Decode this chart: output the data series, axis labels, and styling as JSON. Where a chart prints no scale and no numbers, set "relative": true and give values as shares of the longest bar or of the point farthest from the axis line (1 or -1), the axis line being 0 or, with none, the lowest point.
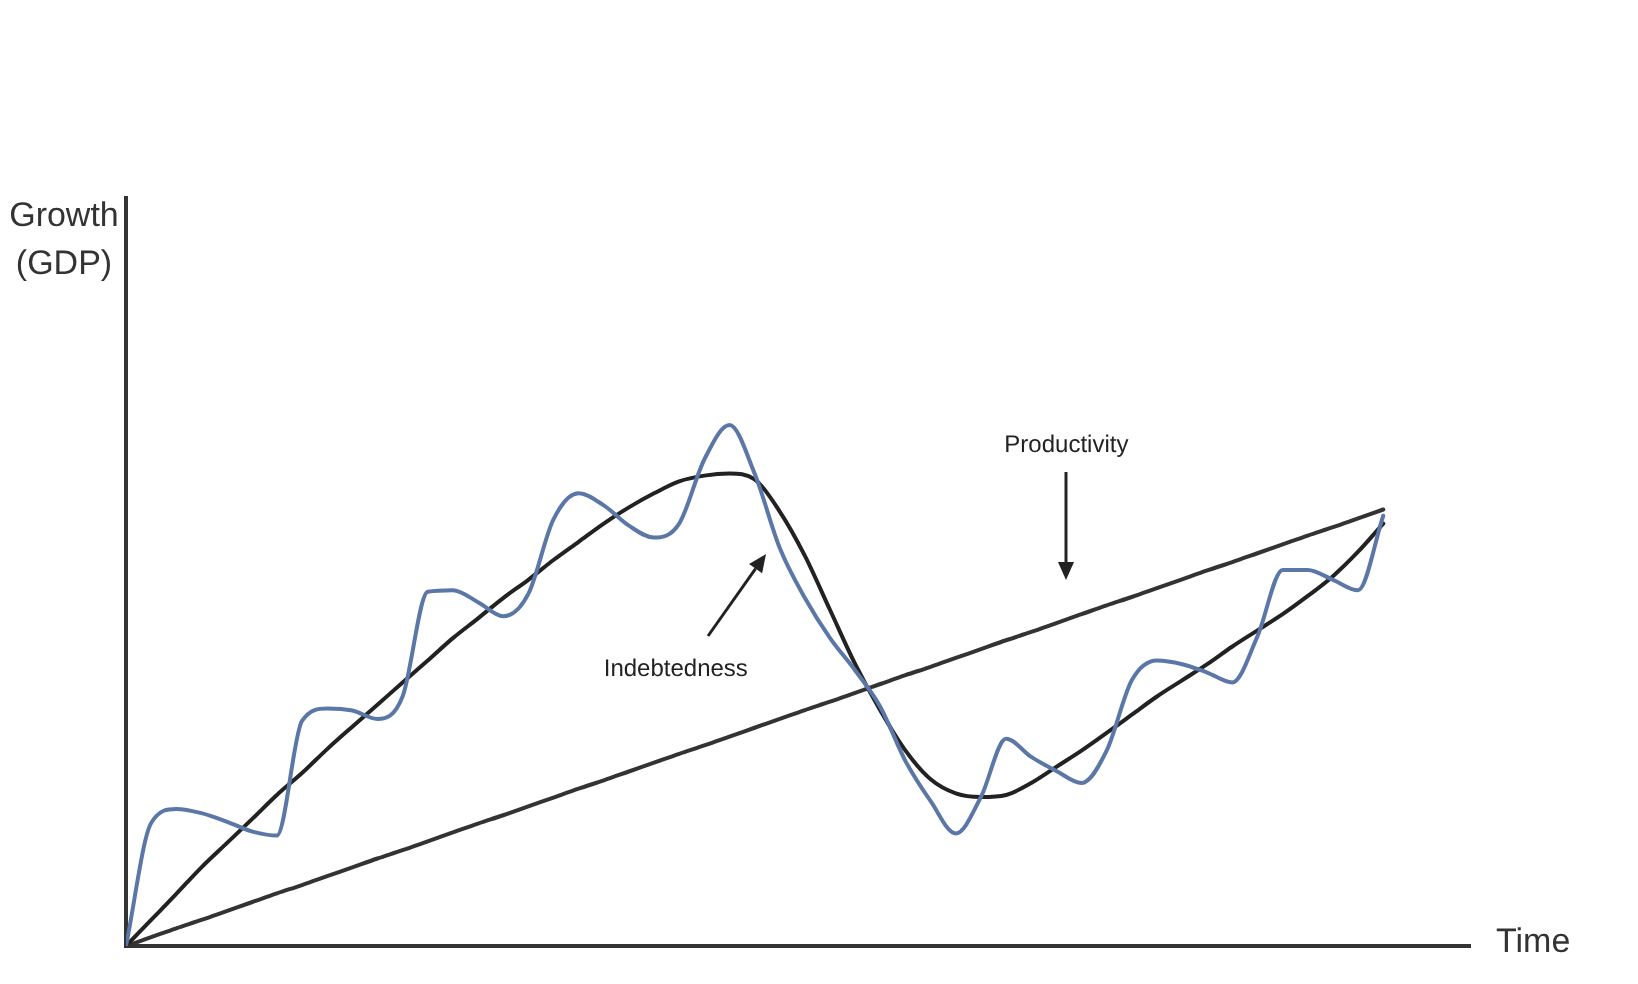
{
  "chart_data": {
    "type": "line",
    "xlabel": "Time",
    "ylabel": "Growth (GDP)",
    "relative": true,
    "marker": "none",
    "annotations": [
      "Indebtedness",
      "Productivity"
    ],
    "categories": [
      null,
      null,
      null,
      null,
      null,
      null,
      null,
      null,
      null,
      null,
      null,
      null,
      null,
      null,
      null,
      null,
      null,
      null,
      null,
      null,
      null,
      null,
      null,
      null,
      null,
      null,
      null,
      null,
      null,
      null,
      null,
      null,
      null,
      null,
      null,
      null,
      null,
      null,
      null,
      null,
      null,
      null,
      null,
      null,
      null,
      null,
      null,
      null,
      null,
      null,
      null
    ],
    "series": [
      {
        "color": "#5b77a8",
        "values": [
          0,
          0.236,
          0.263,
          0.255,
          0.239,
          0.22,
          0.212,
          0.432,
          0.456,
          0.452,
          0.436,
          0.479,
          0.68,
          0.683,
          0.66,
          0.633,
          0.676,
          0.819,
          0.869,
          0.846,
          0.807,
          0.784,
          0.811,
          0.934,
          1,
          0.907,
          0.764,
          0.668,
          0.591,
          0.529,
          0.459,
          0.355,
          0.278,
          0.216,
          0.286,
          0.398,
          0.363,
          0.336,
          0.313,
          0.375,
          0.51,
          0.548,
          0.541,
          0.525,
          0.506,
          0.595,
          0.722,
          0.722,
          0.703,
          0.683,
          0.826
        ]
      },
      {
        "color": "#222222",
        "values": [
          0,
          0.05,
          0.1,
          0.151,
          0.197,
          0.243,
          0.29,
          0.332,
          0.378,
          0.421,
          0.463,
          0.506,
          0.548,
          0.591,
          0.629,
          0.668,
          0.703,
          0.741,
          0.776,
          0.811,
          0.842,
          0.869,
          0.892,
          0.903,
          0.907,
          0.896,
          0.834,
          0.749,
          0.645,
          0.541,
          0.452,
          0.375,
          0.32,
          0.293,
          0.286,
          0.29,
          0.313,
          0.344,
          0.375,
          0.409,
          0.444,
          0.479,
          0.51,
          0.541,
          0.575,
          0.606,
          0.637,
          0.672,
          0.71,
          0.757,
          0.811
        ]
      },
      {
        "color": "#333333",
        "values": [
          0,
          0.017,
          0.034,
          0.05,
          0.067,
          0.084,
          0.101,
          0.117,
          0.134,
          0.151,
          0.168,
          0.184,
          0.201,
          0.218,
          0.235,
          0.251,
          0.268,
          0.285,
          0.302,
          0.318,
          0.335,
          0.352,
          0.369,
          0.385,
          0.402,
          0.419,
          0.436,
          0.453,
          0.469,
          0.486,
          0.503,
          0.52,
          0.536,
          0.553,
          0.57,
          0.587,
          0.603,
          0.62,
          0.637,
          0.654,
          0.67,
          0.687,
          0.704,
          0.721,
          0.737,
          0.754,
          0.771,
          0.788,
          0.804,
          0.821,
          0.838
        ]
      }
    ]
  }
}
